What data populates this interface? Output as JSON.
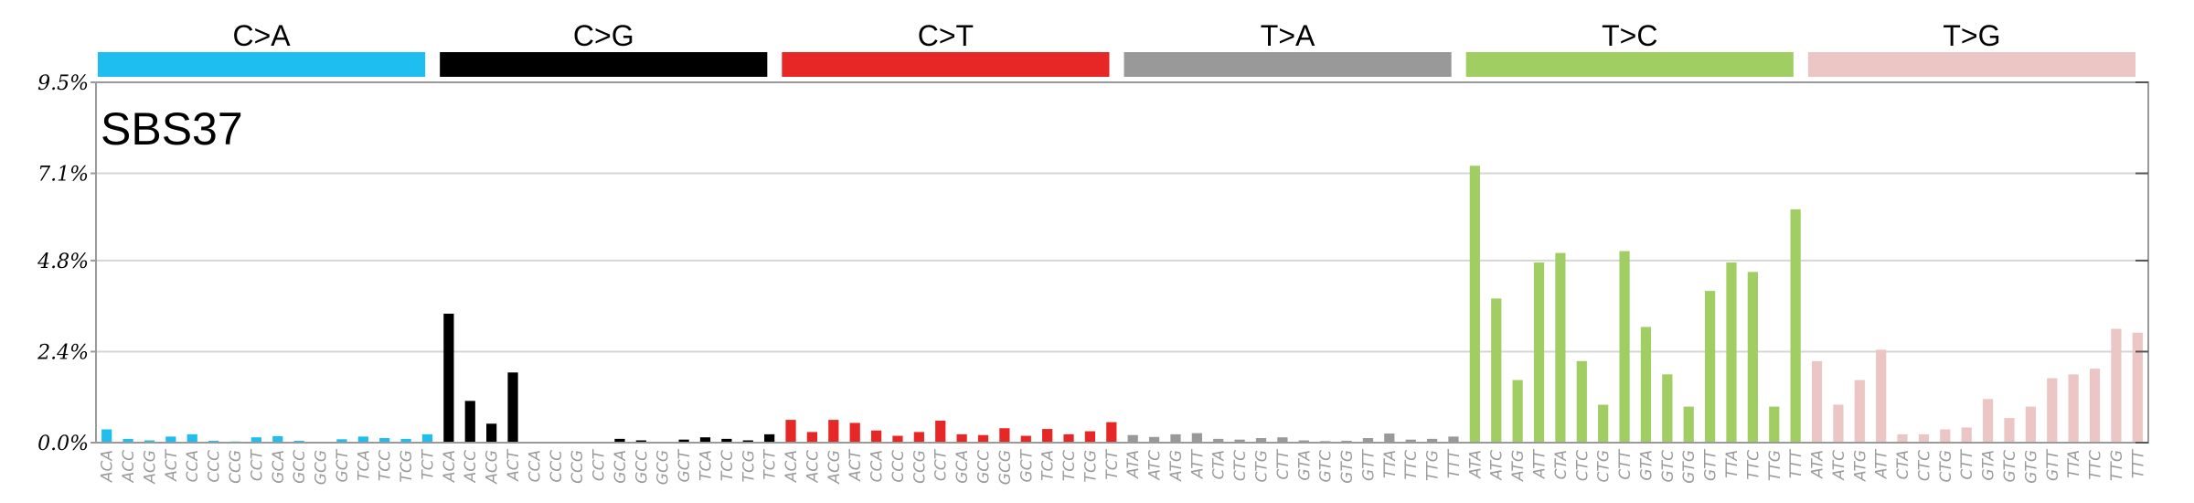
{
  "chart_data": {
    "type": "bar",
    "signature_label": "SBS37",
    "ylim": [
      0,
      9.5
    ],
    "y_ticks": [
      {
        "value": 0.0,
        "label": "0.0%"
      },
      {
        "value": 2.4,
        "label": "2.4%"
      },
      {
        "value": 4.8,
        "label": "4.8%"
      },
      {
        "value": 7.1,
        "label": "7.1%"
      },
      {
        "value": 9.5,
        "label": "9.5%"
      }
    ],
    "grid": true,
    "groups": [
      {
        "name": "C>A",
        "color": "#1ebff0",
        "contexts": [
          "ACA",
          "ACC",
          "ACG",
          "ACT",
          "CCA",
          "CCC",
          "CCG",
          "CCT",
          "GCA",
          "GCC",
          "GCG",
          "GCT",
          "TCA",
          "TCC",
          "TCG",
          "TCT"
        ],
        "values": [
          0.35,
          0.1,
          0.06,
          0.16,
          0.22,
          0.05,
          0.03,
          0.14,
          0.17,
          0.05,
          0.02,
          0.09,
          0.16,
          0.12,
          0.1,
          0.22
        ]
      },
      {
        "name": "C>G",
        "color": "#000000",
        "contexts": [
          "ACA",
          "ACC",
          "ACG",
          "ACT",
          "CCA",
          "CCC",
          "CCG",
          "CCT",
          "GCA",
          "GCC",
          "GCG",
          "GCT",
          "TCA",
          "TCC",
          "TCG",
          "TCT"
        ],
        "values": [
          3.4,
          1.1,
          0.5,
          1.85,
          0.0,
          0.0,
          0.0,
          0.0,
          0.1,
          0.06,
          0.0,
          0.08,
          0.14,
          0.1,
          0.06,
          0.22
        ]
      },
      {
        "name": "C>T",
        "color": "#e62725",
        "contexts": [
          "ACA",
          "ACC",
          "ACG",
          "ACT",
          "CCA",
          "CCC",
          "CCG",
          "CCT",
          "GCA",
          "GCC",
          "GCG",
          "GCT",
          "TCA",
          "TCC",
          "TCG",
          "TCT"
        ],
        "values": [
          0.6,
          0.28,
          0.6,
          0.52,
          0.32,
          0.18,
          0.28,
          0.58,
          0.22,
          0.2,
          0.38,
          0.18,
          0.36,
          0.22,
          0.3,
          0.54
        ]
      },
      {
        "name": "T>A",
        "color": "#999999",
        "contexts": [
          "ATA",
          "ATC",
          "ATG",
          "ATT",
          "CTA",
          "CTC",
          "CTG",
          "CTT",
          "GTA",
          "GTC",
          "GTG",
          "GTT",
          "TTA",
          "TTC",
          "TTG",
          "TTT"
        ],
        "values": [
          0.2,
          0.15,
          0.22,
          0.25,
          0.1,
          0.08,
          0.12,
          0.14,
          0.06,
          0.04,
          0.05,
          0.12,
          0.24,
          0.08,
          0.1,
          0.16
        ]
      },
      {
        "name": "T>C",
        "color": "#a1ce63",
        "contexts": [
          "ATA",
          "ATC",
          "ATG",
          "ATT",
          "CTA",
          "CTC",
          "CTG",
          "CTT",
          "GTA",
          "GTC",
          "GTG",
          "GTT",
          "TTA",
          "TTC",
          "TTG",
          "TTT"
        ],
        "values": [
          7.3,
          3.8,
          1.65,
          4.75,
          5.0,
          2.15,
          1.0,
          5.05,
          3.05,
          1.8,
          0.95,
          4.0,
          4.75,
          4.5,
          0.95,
          6.15
        ]
      },
      {
        "name": "T>G",
        "color": "#ebc6c4",
        "contexts": [
          "ATA",
          "ATC",
          "ATG",
          "ATT",
          "CTA",
          "CTC",
          "CTG",
          "CTT",
          "GTA",
          "GTC",
          "GTG",
          "GTT",
          "TTA",
          "TTC",
          "TTG",
          "TTT"
        ],
        "values": [
          2.15,
          1.0,
          1.65,
          2.45,
          0.22,
          0.22,
          0.35,
          0.4,
          1.15,
          0.65,
          0.95,
          1.7,
          1.8,
          1.95,
          3.0,
          2.9
        ]
      }
    ]
  }
}
